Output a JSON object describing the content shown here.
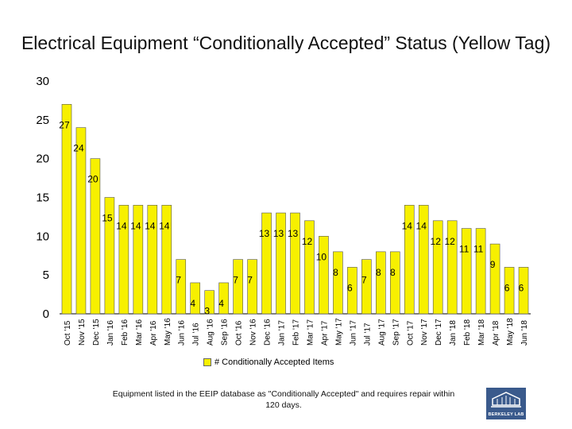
{
  "title": "Electrical Equipment “Conditionally Accepted” Status (Yellow Tag)",
  "footnote": "Equipment listed in the EEIP database as \"Conditionally Accepted\" and requires repair within 120 days.",
  "logo_text": "BERKELEY LAB",
  "colors": {
    "bar": "#f7f000",
    "bar_stroke": "#555555"
  },
  "chart_data": {
    "type": "bar",
    "title": "Electrical Equipment “Conditionally Accepted” Status (Yellow Tag)",
    "xlabel": "",
    "ylabel": "",
    "ylim": [
      0,
      30
    ],
    "yticks": [
      0,
      5,
      10,
      15,
      20,
      25,
      30
    ],
    "grid": false,
    "legend_position": "bottom",
    "categories": [
      "Oct '15",
      "Nov '15",
      "Dec '15",
      "Jan '16",
      "Feb '16",
      "Mar '16",
      "Apr '16",
      "May '16",
      "Jun '16",
      "Jul '16",
      "Aug '16",
      "Sep '16",
      "Oct '16",
      "Nov '16",
      "Dec '16",
      "Jan '17",
      "Feb '17",
      "Mar '17",
      "Apr '17",
      "May '17",
      "Jun '17",
      "Jul '17",
      "Aug '17",
      "Sep '17",
      "Oct '17",
      "Nov '17",
      "Dec '17",
      "Jan '18",
      "Feb '18",
      "Mar '18",
      "Apr '18",
      "May '18",
      "Jun '18"
    ],
    "series": [
      {
        "name": "# Conditionally Accepted Items",
        "values": [
          27,
          24,
          20,
          15,
          14,
          14,
          14,
          14,
          7,
          4,
          3,
          4,
          7,
          7,
          13,
          13,
          13,
          12,
          10,
          8,
          6,
          7,
          8,
          8,
          14,
          14,
          12,
          12,
          11,
          11,
          9,
          6,
          6
        ]
      }
    ]
  }
}
